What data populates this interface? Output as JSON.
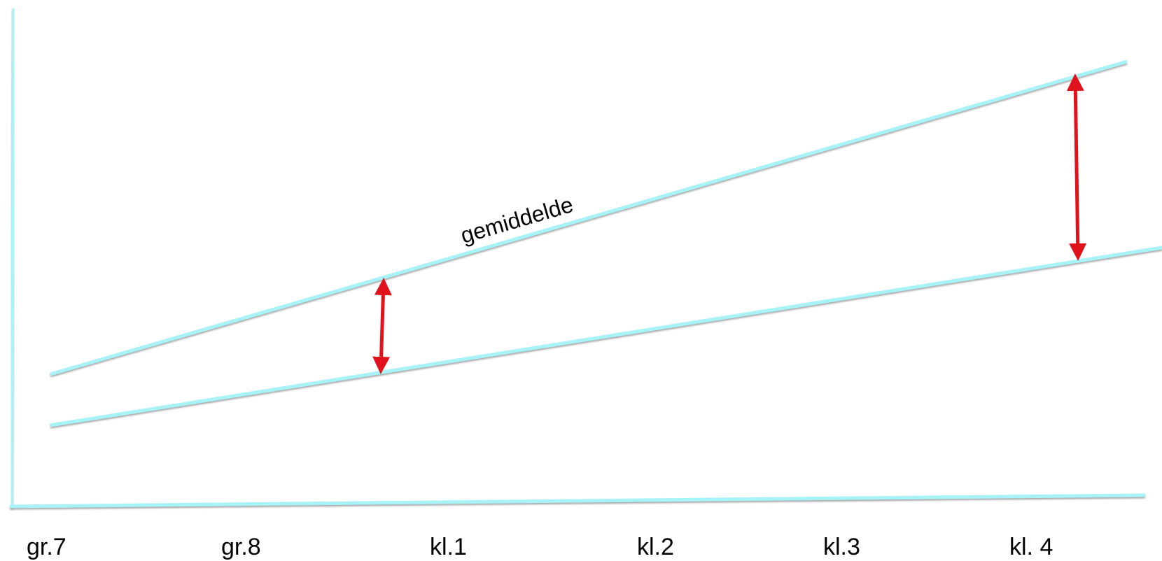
{
  "x_labels": [
    "gr.7",
    "gr.8",
    "kl.1",
    "kl.2",
    "kl.3",
    "kl. 4"
  ],
  "line_label": "gemiddelde",
  "colors": {
    "line": "#a8f3f7",
    "line_shadow": "#b0b0b0",
    "arrow": "#e0121b",
    "text": "#000000",
    "background": "#ffffff"
  }
}
